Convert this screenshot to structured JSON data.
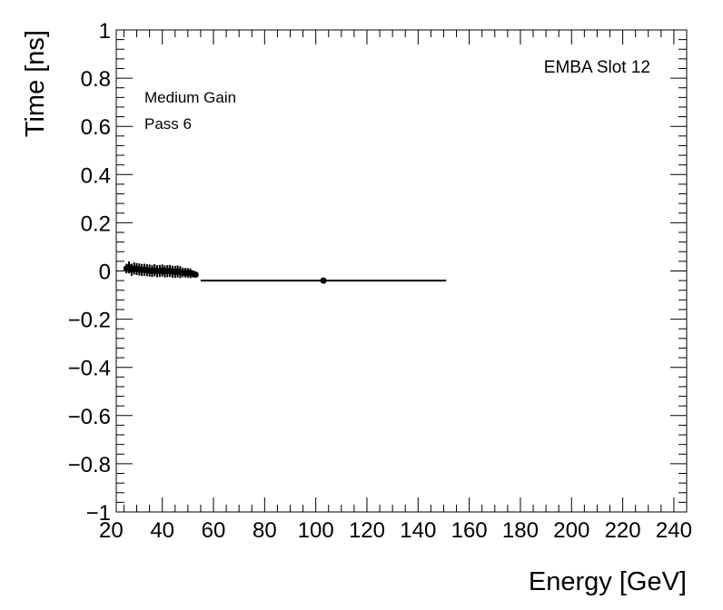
{
  "chart_data": {
    "type": "scatter",
    "title": "",
    "xlabel": "Energy [GeV]",
    "ylabel": "Time [ns]",
    "xlim": [
      22,
      245
    ],
    "ylim": [
      -1,
      1
    ],
    "x_ticks": [
      20,
      40,
      60,
      80,
      100,
      120,
      140,
      160,
      180,
      200,
      220,
      240
    ],
    "x_tick_labels": [
      "20",
      "40",
      "60",
      "80",
      "100",
      "120",
      "140",
      "160",
      "180",
      "200",
      "220",
      "240"
    ],
    "y_ticks": [
      -1,
      -0.8,
      -0.6,
      -0.4,
      -0.2,
      0,
      0.2,
      0.4,
      0.6,
      0.8,
      1
    ],
    "y_tick_labels": [
      "−1",
      "−0.8",
      "−0.6",
      "−0.4",
      "−0.2",
      "0",
      "0.2",
      "0.4",
      "0.6",
      "0.8",
      "1"
    ],
    "annotations": {
      "top_right": "EMBA Slot 12",
      "gain": "Medium Gain",
      "pass": "Pass 6"
    },
    "grid": false,
    "legend": "none",
    "series": [
      {
        "points": [
          {
            "x": 26,
            "y": 0.01,
            "yerr": 0.02
          },
          {
            "x": 27,
            "y": 0.015,
            "yerr": 0.025
          },
          {
            "x": 28,
            "y": 0.005,
            "yerr": 0.025
          },
          {
            "x": 29,
            "y": 0.01,
            "yerr": 0.025
          },
          {
            "x": 30,
            "y": 0.008,
            "yerr": 0.025
          },
          {
            "x": 31,
            "y": 0.006,
            "yerr": 0.025
          },
          {
            "x": 32,
            "y": 0.004,
            "yerr": 0.025
          },
          {
            "x": 33,
            "y": 0.005,
            "yerr": 0.025
          },
          {
            "x": 34,
            "y": 0.003,
            "yerr": 0.025
          },
          {
            "x": 35,
            "y": 0.002,
            "yerr": 0.025
          },
          {
            "x": 36,
            "y": 0.0,
            "yerr": 0.025
          },
          {
            "x": 37,
            "y": 0.003,
            "yerr": 0.025
          },
          {
            "x": 38,
            "y": -0.001,
            "yerr": 0.025
          },
          {
            "x": 39,
            "y": 0.0,
            "yerr": 0.025
          },
          {
            "x": 40,
            "y": 0.002,
            "yerr": 0.025
          },
          {
            "x": 41,
            "y": -0.002,
            "yerr": 0.025
          },
          {
            "x": 42,
            "y": -0.001,
            "yerr": 0.025
          },
          {
            "x": 43,
            "y": 0.0,
            "yerr": 0.025
          },
          {
            "x": 44,
            "y": -0.003,
            "yerr": 0.025
          },
          {
            "x": 45,
            "y": -0.004,
            "yerr": 0.025
          },
          {
            "x": 46,
            "y": -0.002,
            "yerr": 0.025
          },
          {
            "x": 47,
            "y": -0.005,
            "yerr": 0.025
          },
          {
            "x": 48,
            "y": -0.006,
            "yerr": 0.02
          },
          {
            "x": 49,
            "y": -0.007,
            "yerr": 0.02
          },
          {
            "x": 50,
            "y": -0.008,
            "yerr": 0.02
          },
          {
            "x": 51,
            "y": -0.01,
            "yerr": 0.02
          },
          {
            "x": 52,
            "y": -0.012,
            "yerr": 0.015
          },
          {
            "x": 53,
            "y": -0.015,
            "yerr": 0.01
          },
          {
            "x": 103,
            "y": -0.04,
            "yerr": 0.005,
            "xerr": 48
          }
        ]
      }
    ]
  }
}
